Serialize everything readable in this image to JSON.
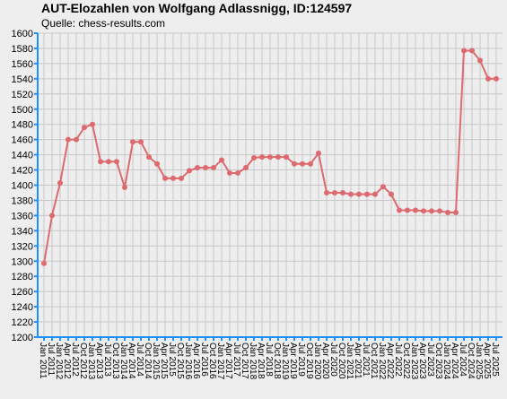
{
  "chart_data": {
    "type": "line",
    "title": "AUT-Elozahlen von Wolfgang Adlassnigg, ID:124597",
    "subtitle": "Quelle: chess-results.com",
    "categories": [
      "Jan 2011",
      "Jul 2011",
      "Jan 2012",
      "Apr 2012",
      "Jul 2012",
      "Oct 2012",
      "Jan 2013",
      "Apr 2013",
      "Jul 2013",
      "Oct 2013",
      "Jan 2014",
      "Apr 2014",
      "Jul 2014",
      "Oct 2014",
      "Jan 2015",
      "Apr 2015",
      "Jul 2015",
      "Oct 2015",
      "Jan 2016",
      "Apr 2016",
      "Jul 2016",
      "Oct 2016",
      "Jan 2017",
      "Apr 2017",
      "Jul 2017",
      "Oct 2017",
      "Jan 2018",
      "Apr 2018",
      "Jul 2018",
      "Oct 2018",
      "Jan 2019",
      "Apr 2019",
      "Jul 2019",
      "Oct 2019",
      "Jan 2020",
      "Apr 2020",
      "Jul 2020",
      "Oct 2020",
      "Jan 2021",
      "Apr 2021",
      "Jul 2021",
      "Oct 2021",
      "Jan 2022",
      "Apr 2022",
      "Jul 2022",
      "Oct 2022",
      "Jan 2023",
      "Apr 2023",
      "Jul 2023",
      "Oct 2023",
      "Jan 2024",
      "Apr 2024",
      "Jul 2024",
      "Oct 2024",
      "Jan 2025",
      "Apr 2025",
      "Jul 2025"
    ],
    "values": [
      1297,
      1360,
      1403,
      1460,
      1460,
      1476,
      1480,
      1431,
      1431,
      1431,
      1397,
      1457,
      1457,
      1437,
      1428,
      1409,
      1409,
      1409,
      1419,
      1423,
      1423,
      1423,
      1433,
      1416,
      1416,
      1423,
      1436,
      1437,
      1437,
      1437,
      1437,
      1428,
      1428,
      1428,
      1442,
      1390,
      1390,
      1390,
      1388,
      1388,
      1388,
      1388,
      1398,
      1388,
      1367,
      1367,
      1367,
      1366,
      1366,
      1366,
      1364,
      1364,
      1577,
      1577,
      1564,
      1540,
      1540
    ],
    "color": "#dc6a6e",
    "axis_color": "#1e8fff",
    "ylim": [
      1200,
      1600
    ],
    "yticks": [
      1200,
      1220,
      1240,
      1260,
      1280,
      1300,
      1320,
      1340,
      1360,
      1380,
      1400,
      1420,
      1440,
      1460,
      1480,
      1500,
      1520,
      1540,
      1560,
      1580,
      1600
    ],
    "grid": true
  }
}
